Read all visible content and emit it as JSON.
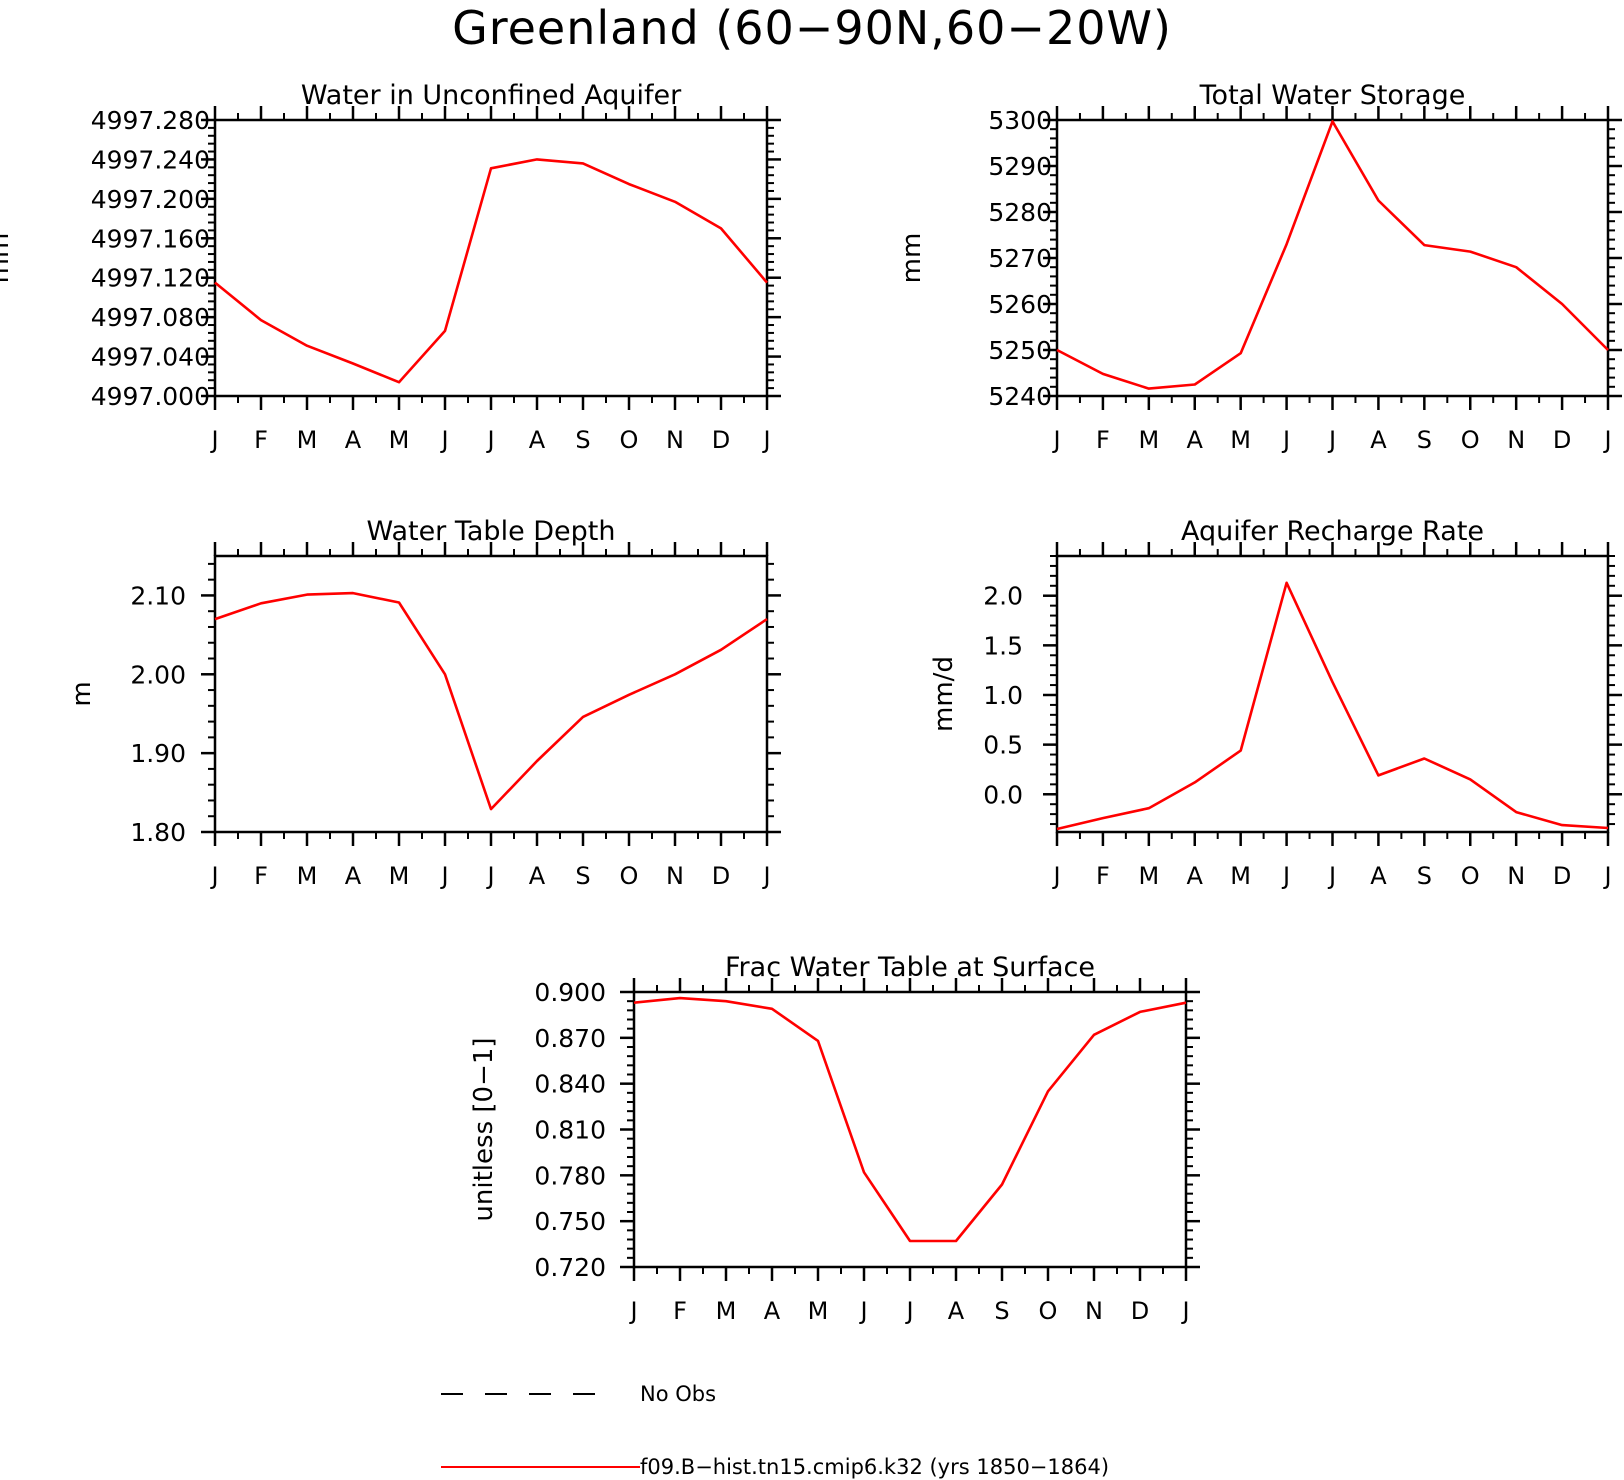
{
  "figure": {
    "title": "Greenland (60−90N,60−20W)",
    "line_color": "#ff0000"
  },
  "legend": {
    "items": [
      {
        "label": "No Obs",
        "style": "dashed",
        "color": "#000000"
      },
      {
        "label": "f09.B−hist.tn15.cmip6.k32 (yrs 1850−1864)",
        "style": "solid",
        "color": "#ff0000"
      }
    ]
  },
  "chart_data": [
    {
      "type": "line",
      "title": "Water in Unconfined Aquifer",
      "xlabel": "",
      "ylabel": "mm",
      "x": [
        "J",
        "F",
        "M",
        "A",
        "M",
        "J",
        "J",
        "A",
        "S",
        "O",
        "N",
        "D",
        "J"
      ],
      "ylim": [
        4997.0,
        4997.28
      ],
      "yticks": [
        4997.0,
        4997.04,
        4997.08,
        4997.12,
        4997.16,
        4997.2,
        4997.24,
        4997.28
      ],
      "yticklabels": [
        "4997.000",
        "4997.040",
        "4997.080",
        "4997.120",
        "4997.160",
        "4997.200",
        "4997.240",
        "4997.280"
      ],
      "series": [
        {
          "values": [
            4997.115,
            4997.077,
            4997.051,
            4997.033,
            4997.014,
            4997.066,
            4997.231,
            4997.24,
            4997.236,
            4997.215,
            4997.197,
            4997.17,
            4997.115
          ]
        }
      ]
    },
    {
      "type": "line",
      "title": "Total Water Storage",
      "xlabel": "",
      "ylabel": "mm",
      "x": [
        "J",
        "F",
        "M",
        "A",
        "M",
        "J",
        "J",
        "A",
        "S",
        "O",
        "N",
        "D",
        "J"
      ],
      "ylim": [
        5240,
        5300
      ],
      "yticks": [
        5240,
        5250,
        5260,
        5270,
        5280,
        5290,
        5300
      ],
      "yticklabels": [
        "5240",
        "5250",
        "5260",
        "5270",
        "5280",
        "5290",
        "5300"
      ],
      "series": [
        {
          "values": [
            5250.0,
            5244.8,
            5241.6,
            5242.5,
            5249.3,
            5273.0,
            5299.7,
            5282.5,
            5272.8,
            5271.4,
            5268.0,
            5260.0,
            5250.0
          ]
        }
      ]
    },
    {
      "type": "line",
      "title": "Water Table Depth",
      "xlabel": "",
      "ylabel": "m",
      "x": [
        "J",
        "F",
        "M",
        "A",
        "M",
        "J",
        "J",
        "A",
        "S",
        "O",
        "N",
        "D",
        "J"
      ],
      "ylim": [
        1.8,
        2.15
      ],
      "yticks": [
        1.8,
        1.9,
        2.0,
        2.1
      ],
      "yticklabels": [
        "1.80",
        "1.90",
        "2.00",
        "2.10"
      ],
      "series": [
        {
          "values": [
            2.07,
            2.09,
            2.101,
            2.103,
            2.091,
            2.0,
            1.829,
            1.89,
            1.946,
            1.974,
            2.0,
            2.031,
            2.07
          ]
        }
      ]
    },
    {
      "type": "line",
      "title": "Aquifer Recharge Rate",
      "xlabel": "",
      "ylabel": "mm/d",
      "x": [
        "J",
        "F",
        "M",
        "A",
        "M",
        "J",
        "J",
        "A",
        "S",
        "O",
        "N",
        "D",
        "J"
      ],
      "ylim": [
        -0.38,
        2.4
      ],
      "yticks": [
        0.0,
        0.5,
        1.0,
        1.5,
        2.0
      ],
      "yticklabels": [
        "0.0",
        "0.5",
        "1.0",
        "1.5",
        "2.0"
      ],
      "series": [
        {
          "values": [
            -0.35,
            -0.24,
            -0.14,
            0.12,
            0.44,
            2.13,
            1.13,
            0.19,
            0.36,
            0.15,
            -0.18,
            -0.31,
            -0.34
          ]
        }
      ]
    },
    {
      "type": "line",
      "title": "Frac Water Table at Surface",
      "xlabel": "",
      "ylabel": "unitless [0−1]",
      "x": [
        "J",
        "F",
        "M",
        "A",
        "M",
        "J",
        "J",
        "A",
        "S",
        "O",
        "N",
        "D",
        "J"
      ],
      "ylim": [
        0.72,
        0.9
      ],
      "yticks": [
        0.72,
        0.75,
        0.78,
        0.81,
        0.84,
        0.87,
        0.9
      ],
      "yticklabels": [
        "0.720",
        "0.750",
        "0.780",
        "0.810",
        "0.840",
        "0.870",
        "0.900"
      ],
      "series": [
        {
          "values": [
            0.893,
            0.896,
            0.894,
            0.889,
            0.868,
            0.782,
            0.737,
            0.737,
            0.774,
            0.835,
            0.872,
            0.887,
            0.893
          ]
        }
      ]
    }
  ]
}
